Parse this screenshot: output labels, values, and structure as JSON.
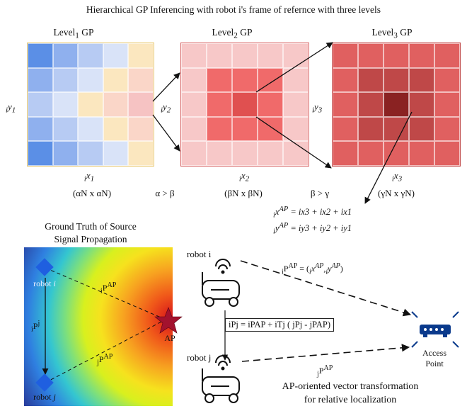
{
  "title": "Hierarchical GP Inferencing with robot i's frame of refernce with three levels",
  "levels": {
    "l1": {
      "name": "Level",
      "sub": "1",
      "suffix": " GP",
      "x_label": "x",
      "x_sub": "1",
      "y_label": "y",
      "y_sub": "1",
      "pre": "i",
      "dims": "(αN x αN)"
    },
    "l2": {
      "name": "Level",
      "sub": "2",
      "suffix": " GP",
      "x_label": "x",
      "x_sub": "2",
      "y_label": "y",
      "y_sub": "2",
      "pre": "i",
      "dims": "(βN x βN)"
    },
    "l3": {
      "name": "Level",
      "sub": "3",
      "suffix": " GP",
      "x_label": "x",
      "x_sub": "3",
      "y_label": "y",
      "y_sub": "3",
      "pre": "i",
      "dims": "(γN x γN)"
    }
  },
  "relations": {
    "ab": "α > β",
    "bg": "β > γ"
  },
  "equations": {
    "x_ap": "iˣᴬᴾ = ix₃ + ix₂ + ix₁",
    "x_ap_lhs": "x",
    "x_ap_sup": "AP",
    "x_ap_rhs": "= ix3 + ix2 + ix1",
    "y_ap_lhs": "y",
    "y_ap_sup": "AP",
    "y_ap_rhs": "= iy3 + iy2 + iy1"
  },
  "ground_truth": {
    "title_line1": "Ground Truth of Source",
    "title_line2": "Signal Propagation"
  },
  "labels": {
    "robot_i": "robot i",
    "robot_j": "robot j",
    "ap": "AP",
    "pap_i": "P",
    "pap_sup": "AP",
    "pj": "P",
    "pj_sup": "j",
    "access_point_line1": "Access",
    "access_point_line2": "Point",
    "ipap_def": "P",
    "transform_eq": "iPj = iPAP + iTj ( jPj - jPAP)"
  },
  "caption": {
    "line1": "AP-oriented vector transformation",
    "line2": "for relative localization"
  },
  "grids": {
    "l1": [
      [
        "#5b8fe6",
        "#8fb0ee",
        "#b7cbf3",
        "#d9e3f8",
        "#fbe7bf"
      ],
      [
        "#8fb0ee",
        "#b7cbf3",
        "#d9e3f8",
        "#fbe7bf",
        "#fad6c8"
      ],
      [
        "#b7cbf3",
        "#d9e3f8",
        "#fbe7bf",
        "#fad6c8",
        "#f6c3c3"
      ],
      [
        "#8fb0ee",
        "#b7cbf3",
        "#d9e3f8",
        "#fbe7bf",
        "#fad6c8"
      ],
      [
        "#5b8fe6",
        "#8fb0ee",
        "#b7cbf3",
        "#d9e3f8",
        "#fbe7bf"
      ]
    ],
    "l2": [
      [
        "#f7c8c8",
        "#f7c8c8",
        "#f7c8c8",
        "#f7c8c8",
        "#f7c8c8"
      ],
      [
        "#f7c8c8",
        "#f06a6a",
        "#f06a6a",
        "#f06a6a",
        "#f7c8c8"
      ],
      [
        "#f7c8c8",
        "#f06a6a",
        "#e05050",
        "#f06a6a",
        "#f7c8c8"
      ],
      [
        "#f7c8c8",
        "#f06a6a",
        "#f06a6a",
        "#f06a6a",
        "#f7c8c8"
      ],
      [
        "#f7c8c8",
        "#f7c8c8",
        "#f7c8c8",
        "#f7c8c8",
        "#f7c8c8"
      ]
    ],
    "l3": [
      [
        "#e06060",
        "#e06060",
        "#e06060",
        "#e06060",
        "#e06060"
      ],
      [
        "#e06060",
        "#bf4848",
        "#bf4848",
        "#bf4848",
        "#e06060"
      ],
      [
        "#e06060",
        "#bf4848",
        "#8a2222",
        "#bf4848",
        "#e06060"
      ],
      [
        "#e06060",
        "#bf4848",
        "#bf4848",
        "#bf4848",
        "#e06060"
      ],
      [
        "#e06060",
        "#e06060",
        "#e06060",
        "#e06060",
        "#e06060"
      ]
    ]
  },
  "colors": {
    "robot_marker": "#1f5fe0",
    "ap_star": "#a3122e",
    "access_point": "#0a3a8c"
  }
}
